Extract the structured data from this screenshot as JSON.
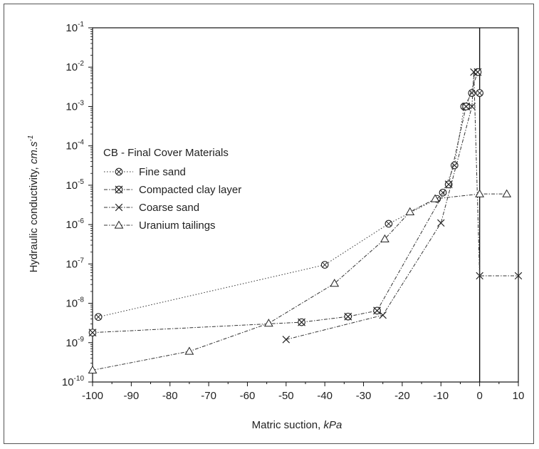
{
  "chart_data": {
    "type": "scatter",
    "title": "",
    "xlabel": "Matric suction, ",
    "xlabel_unit": "kPa",
    "ylabel": "Hydraulic conductivity, ",
    "ylabel_unit": "cm.s",
    "ylabel_unit_exp": "-1",
    "xlim": [
      -100,
      10
    ],
    "ylim": [
      1e-10,
      0.1
    ],
    "yscale": "log",
    "grid": false,
    "legend_position": "middle-left",
    "x_ticks": [
      "-100",
      "-90",
      "-80",
      "-70",
      "-60",
      "-50",
      "-40",
      "-30",
      "-20",
      "-10",
      "0",
      "10"
    ],
    "y_ticks": [
      {
        "base": "10",
        "exp": "-10"
      },
      {
        "base": "10",
        "exp": "-9"
      },
      {
        "base": "10",
        "exp": "-8"
      },
      {
        "base": "10",
        "exp": "-7"
      },
      {
        "base": "10",
        "exp": "-6"
      },
      {
        "base": "10",
        "exp": "-5"
      },
      {
        "base": "10",
        "exp": "-4"
      },
      {
        "base": "10",
        "exp": "-3"
      },
      {
        "base": "10",
        "exp": "-2"
      },
      {
        "base": "10",
        "exp": "-1"
      }
    ],
    "reference_line_x": 0,
    "legend_title": "CB - Final Cover Materials",
    "series": [
      {
        "name": "Fine sand",
        "marker": "circle-x",
        "line": "dotted",
        "points": [
          [
            -98.5,
            4.5e-09
          ],
          [
            -40,
            9.5e-08
          ],
          [
            -23.5,
            1.05e-06
          ],
          [
            -11,
            4.5e-06
          ],
          [
            -9.5,
            6.5e-06
          ],
          [
            -6.5,
            3.2e-05
          ],
          [
            -4,
            0.001
          ],
          [
            -2,
            0.0022
          ],
          [
            0,
            0.0022
          ]
        ]
      },
      {
        "name": "Compacted clay layer",
        "marker": "circle-cross",
        "line": "dashdot",
        "points": [
          [
            -100,
            1.8e-09
          ],
          [
            -46,
            3.3e-09
          ],
          [
            -34,
            4.6e-09
          ],
          [
            -26.5,
            6.5e-09
          ],
          [
            -8,
            1.05e-05
          ],
          [
            -3.5,
            0.001
          ],
          [
            -0.5,
            0.0075
          ]
        ]
      },
      {
        "name": "Coarse sand",
        "marker": "x",
        "line": "dashdot",
        "points": [
          [
            -50,
            1.2e-09
          ],
          [
            -25,
            5e-09
          ],
          [
            -10,
            1.1e-06
          ],
          [
            -2,
            0.001
          ],
          [
            -1.5,
            0.0075
          ],
          [
            0,
            5e-08
          ],
          [
            10,
            5e-08
          ]
        ]
      },
      {
        "name": "Uranium tailings",
        "marker": "triangle",
        "line": "dashdot",
        "points": [
          [
            -100,
            2e-10
          ],
          [
            -75,
            6e-10
          ],
          [
            -54.5,
            3.1e-09
          ],
          [
            -37.5,
            3.2e-08
          ],
          [
            -24.5,
            4.3e-07
          ],
          [
            -18,
            2.1e-06
          ],
          [
            -11.5,
            4.5e-06
          ],
          [
            0,
            6e-06
          ],
          [
            7,
            6e-06
          ]
        ]
      }
    ]
  }
}
